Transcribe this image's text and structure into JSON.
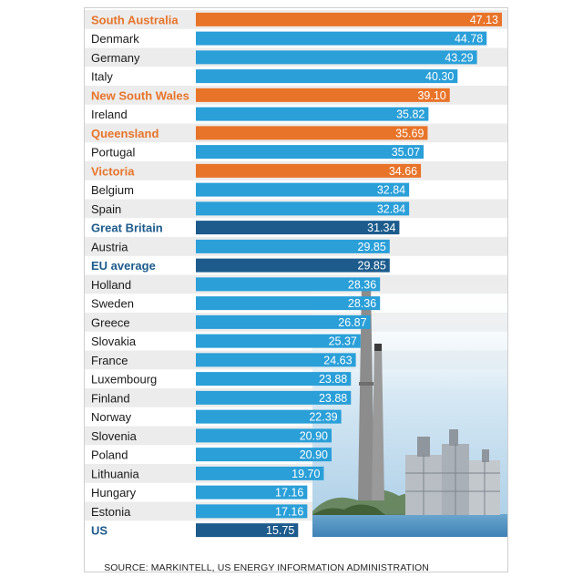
{
  "chart_data": {
    "type": "bar",
    "orientation": "horizontal",
    "title": "",
    "xlabel": "",
    "ylabel": "",
    "xlim": [
      0,
      47.13
    ],
    "grid": false,
    "legend": "none",
    "categories": [
      "South Australia",
      "Denmark",
      "Germany",
      "Italy",
      "New South Wales",
      "Ireland",
      "Queensland",
      "Portugal",
      "Victoria",
      "Belgium",
      "Spain",
      "Great Britain",
      "Austria",
      "EU average",
      "Holland",
      "Sweden",
      "Greece",
      "Slovakia",
      "France",
      "Luxembourg",
      "Finland",
      "Norway",
      "Slovenia",
      "Poland",
      "Lithuania",
      "Hungary",
      "Estonia",
      "US"
    ],
    "values": [
      47.13,
      44.78,
      43.29,
      40.3,
      39.1,
      35.82,
      35.69,
      35.07,
      34.66,
      32.84,
      32.84,
      31.34,
      29.85,
      29.85,
      28.36,
      28.36,
      26.87,
      25.37,
      24.63,
      23.88,
      23.88,
      22.39,
      20.9,
      20.9,
      19.7,
      17.16,
      17.16,
      15.75
    ],
    "value_labels": [
      "47.13",
      "44.78",
      "43.29",
      "40.30",
      "39.10",
      "35.82",
      "35.69",
      "35.07",
      "34.66",
      "32.84",
      "32.84",
      "31.34",
      "29.85",
      "29.85",
      "28.36",
      "28.36",
      "26.87",
      "25.37",
      "24.63",
      "23.88",
      "23.88",
      "22.39",
      "20.90",
      "20.90",
      "19.70",
      "17.16",
      "17.16",
      "15.75"
    ],
    "groups": [
      "australia",
      "world",
      "world",
      "world",
      "australia",
      "world",
      "australia",
      "world",
      "australia",
      "world",
      "world",
      "highlight",
      "world",
      "highlight",
      "world",
      "world",
      "world",
      "world",
      "world",
      "world",
      "world",
      "world",
      "world",
      "world",
      "world",
      "world",
      "world",
      "highlight"
    ],
    "colors": {
      "australia_bar": "#e8742a",
      "australia_text": "#e8742a",
      "world_bar": "#2a9fd8",
      "world_text": "#1a1a1a",
      "highlight_bar": "#1c5b8c",
      "highlight_text": "#1c5b8c",
      "row_alt": "#ececec",
      "value_text": "#ffffff"
    }
  },
  "source": "SOURCE: MARKINTELL, US ENERGY INFORMATION ADMINISTRATION",
  "background_picture": "power-station-chimneys-photo"
}
